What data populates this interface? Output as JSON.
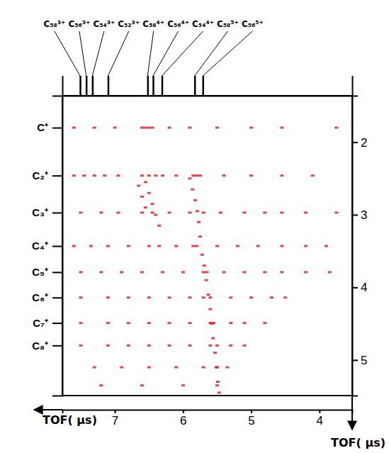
{
  "chart_data": {
    "type": "scatter",
    "x_label": "TOF( μs)",
    "y_label": "TOF( μs)",
    "xlim": [
      7.77,
      3.52
    ],
    "xticks": [
      7,
      6,
      5,
      4
    ],
    "x2ticks": [
      {
        "value": 7.51,
        "label": "C₅₈³⁺"
      },
      {
        "value": 7.42,
        "label": "C₅₆³⁺"
      },
      {
        "value": 7.33,
        "label": "C₅₄³⁺"
      },
      {
        "value": 7.1,
        "label": "C₅₂³⁺"
      },
      {
        "value": 6.52,
        "label": "C₅₈⁴⁺"
      },
      {
        "value": 6.44,
        "label": "C₅₆⁴⁺"
      },
      {
        "value": 6.31,
        "label": "C₅₄⁴⁺"
      },
      {
        "value": 5.83,
        "label": "C₅₈⁵⁺"
      },
      {
        "value": 5.71,
        "label": "C₅₆⁵⁺"
      }
    ],
    "ylim": [
      1.36,
      5.49
    ],
    "yticks": [
      {
        "value": 1.8,
        "label": "C⁺"
      },
      {
        "value": 2.46,
        "label": "C₂⁺"
      },
      {
        "value": 2.97,
        "label": "C₃⁺"
      },
      {
        "value": 3.43,
        "label": "C₄⁺"
      },
      {
        "value": 3.79,
        "label": "C₅⁺"
      },
      {
        "value": 4.14,
        "label": "C₆⁺"
      },
      {
        "value": 4.49,
        "label": "C₇⁺"
      },
      {
        "value": 4.8,
        "label": "C₈⁺"
      }
    ],
    "y2lim": [
      1.36,
      5.49
    ],
    "y2ticks": [
      2,
      3,
      4,
      5
    ],
    "color": "#e0242c",
    "marker": "square",
    "grid": false,
    "x": [
      7.6,
      7.3,
      7.0,
      6.6,
      6.55,
      6.5,
      6.45,
      6.2,
      5.9,
      5.5,
      5.0,
      4.55,
      3.75,
      7.6,
      7.45,
      7.3,
      7.15,
      6.95,
      6.6,
      6.5,
      6.4,
      6.3,
      6.1,
      5.85,
      5.8,
      5.75,
      5.4,
      5.0,
      4.55,
      4.1,
      7.5,
      7.2,
      6.95,
      6.6,
      6.45,
      6.2,
      5.9,
      5.7,
      5.45,
      5.1,
      4.8,
      4.55,
      4.2,
      3.75,
      7.6,
      7.35,
      7.1,
      6.8,
      6.5,
      6.35,
      6.1,
      5.85,
      5.8,
      5.5,
      5.2,
      4.9,
      4.55,
      4.2,
      3.9,
      7.5,
      7.2,
      6.9,
      6.6,
      6.3,
      6.0,
      5.7,
      5.65,
      5.4,
      5.1,
      4.8,
      4.55,
      4.2,
      3.85,
      7.5,
      7.1,
      6.8,
      6.5,
      6.2,
      5.9,
      5.7,
      5.6,
      5.3,
      5.0,
      4.7,
      4.5,
      7.5,
      7.1,
      6.8,
      6.5,
      6.2,
      5.9,
      5.6,
      5.55,
      5.3,
      5.1,
      4.8,
      7.5,
      7.1,
      6.8,
      6.5,
      6.2,
      5.9,
      5.6,
      5.5,
      5.3,
      5.1,
      7.3,
      6.9,
      6.5,
      6.1,
      5.7,
      5.5,
      5.35,
      7.2,
      6.6,
      6.0,
      5.5,
      5.9,
      5.86,
      5.82,
      5.79,
      5.77,
      5.75,
      5.72,
      5.69,
      5.66,
      5.63,
      5.6,
      5.58,
      5.56,
      5.53,
      5.51,
      5.49,
      5.47,
      6.55,
      6.5,
      6.45,
      6.4,
      6.35,
      6.65,
      6.6,
      6.55
    ],
    "values": [
      1.8,
      1.8,
      1.8,
      1.8,
      1.8,
      1.8,
      1.8,
      1.8,
      1.8,
      1.8,
      1.8,
      1.8,
      1.8,
      2.46,
      2.46,
      2.46,
      2.46,
      2.46,
      2.46,
      2.46,
      2.46,
      2.46,
      2.46,
      2.46,
      2.46,
      2.46,
      2.46,
      2.46,
      2.46,
      2.46,
      2.97,
      2.97,
      2.97,
      2.97,
      2.97,
      2.97,
      2.97,
      2.97,
      2.97,
      2.97,
      2.97,
      2.97,
      2.97,
      2.97,
      3.43,
      3.43,
      3.43,
      3.43,
      3.43,
      3.43,
      3.43,
      3.43,
      3.43,
      3.43,
      3.43,
      3.43,
      3.43,
      3.43,
      3.43,
      3.79,
      3.79,
      3.79,
      3.79,
      3.79,
      3.79,
      3.79,
      3.79,
      3.79,
      3.79,
      3.79,
      3.79,
      3.79,
      3.79,
      4.14,
      4.14,
      4.14,
      4.14,
      4.14,
      4.14,
      4.14,
      4.14,
      4.14,
      4.14,
      4.14,
      4.14,
      4.49,
      4.49,
      4.49,
      4.49,
      4.49,
      4.49,
      4.49,
      4.49,
      4.49,
      4.49,
      4.49,
      4.8,
      4.8,
      4.8,
      4.8,
      4.8,
      4.8,
      4.8,
      4.8,
      4.8,
      4.8,
      5.1,
      5.1,
      5.1,
      5.1,
      5.1,
      5.1,
      5.1,
      5.35,
      5.35,
      5.35,
      5.35,
      2.5,
      2.65,
      2.8,
      2.95,
      3.1,
      3.3,
      3.55,
      3.7,
      3.9,
      4.1,
      4.3,
      4.5,
      4.7,
      4.9,
      5.1,
      5.3,
      5.45,
      2.55,
      2.7,
      2.85,
      3.0,
      3.15,
      2.6,
      2.75,
      2.9
    ]
  }
}
